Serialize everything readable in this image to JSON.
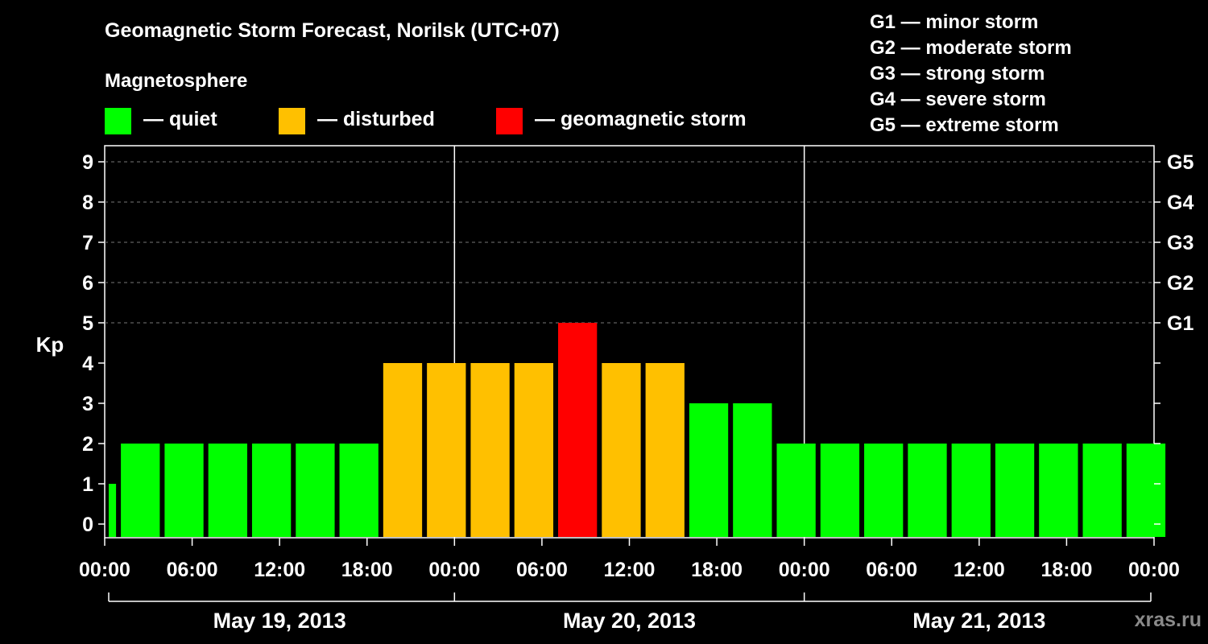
{
  "title": "Geomagnetic Storm Forecast, Norilsk (UTC+07)",
  "magnetosphere": {
    "heading": "Magnetosphere",
    "legend": [
      {
        "label": "— quiet",
        "color": "#00ff00"
      },
      {
        "label": "— disturbed",
        "color": "#ffc000"
      },
      {
        "label": "— geomagnetic storm",
        "color": "#ff0000"
      }
    ]
  },
  "storm_scale": [
    "G1 — minor storm",
    "G2 — moderate storm",
    "G3 — strong storm",
    "G4 — severe storm",
    "G5 — extreme storm"
  ],
  "watermark": "xras.ru",
  "chart_data": {
    "type": "bar",
    "title": "Geomagnetic Storm Forecast, Norilsk (UTC+07)",
    "ylabel": "Kp",
    "ylim": [
      0,
      9
    ],
    "yticks": [
      0,
      1,
      2,
      3,
      4,
      5,
      6,
      7,
      8,
      9
    ],
    "right_axis": [
      {
        "value": 5,
        "label": "G1"
      },
      {
        "value": 6,
        "label": "G2"
      },
      {
        "value": 7,
        "label": "G3"
      },
      {
        "value": 8,
        "label": "G4"
      },
      {
        "value": 9,
        "label": "G5"
      }
    ],
    "x_tick_labels": [
      "00:00",
      "06:00",
      "12:00",
      "18:00",
      "00:00",
      "06:00",
      "12:00",
      "18:00",
      "00:00",
      "06:00",
      "12:00",
      "18:00",
      "00:00"
    ],
    "x_hours_total": 72,
    "x_tick_every_hours": 6,
    "days": [
      "May 19, 2013",
      "May 20, 2013",
      "May 21, 2013"
    ],
    "bar_step_hours": 3,
    "first_bar_start_hour": 1,
    "values": [
      1,
      2,
      2,
      2,
      2,
      2,
      2,
      4,
      4,
      4,
      4,
      5,
      4,
      4,
      3,
      3,
      2,
      2,
      2,
      2,
      2,
      2,
      2,
      2,
      2
    ],
    "status_thresholds": {
      "disturbed": 4,
      "storm": 5
    },
    "colors": {
      "quiet": "#00ff00",
      "disturbed": "#ffc000",
      "storm": "#ff0000"
    }
  }
}
